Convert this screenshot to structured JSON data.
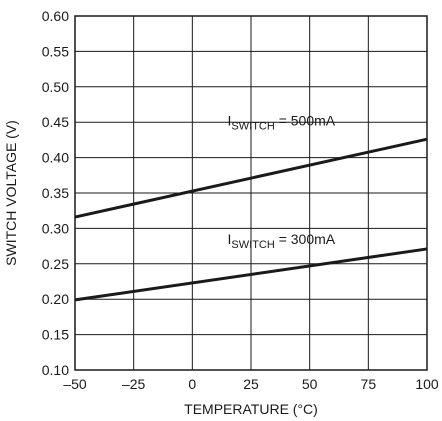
{
  "chart_data": {
    "type": "line",
    "xlabel": "TEMPERATURE (°C)",
    "ylabel": "SWITCH VOLTAGE (V)",
    "xlim": [
      -50,
      100
    ],
    "ylim": [
      0.1,
      0.6
    ],
    "x_ticks": [
      -50,
      -25,
      0,
      25,
      50,
      75,
      100
    ],
    "x_tick_labels": [
      "–50",
      "–25",
      "0",
      "25",
      "50",
      "75",
      "100"
    ],
    "y_ticks": [
      0.1,
      0.15,
      0.2,
      0.25,
      0.3,
      0.35,
      0.4,
      0.45,
      0.5,
      0.55,
      0.6
    ],
    "y_tick_labels": [
      "0.10",
      "0.15",
      "0.20",
      "0.25",
      "0.30",
      "0.35",
      "0.40",
      "0.45",
      "0.50",
      "0.55",
      "0.60"
    ],
    "grid": true,
    "series": [
      {
        "label_main": "I",
        "label_sub": "SWITCH",
        "label_rest": " = 500mA",
        "label_at": [
          15,
          0.445
        ],
        "x": [
          -50,
          100
        ],
        "values": [
          0.316,
          0.426
        ]
      },
      {
        "label_main": "I",
        "label_sub": "SWITCH",
        "label_rest": " = 300mA",
        "label_at": [
          15,
          0.278
        ],
        "x": [
          -50,
          100
        ],
        "values": [
          0.199,
          0.271
        ]
      }
    ]
  }
}
